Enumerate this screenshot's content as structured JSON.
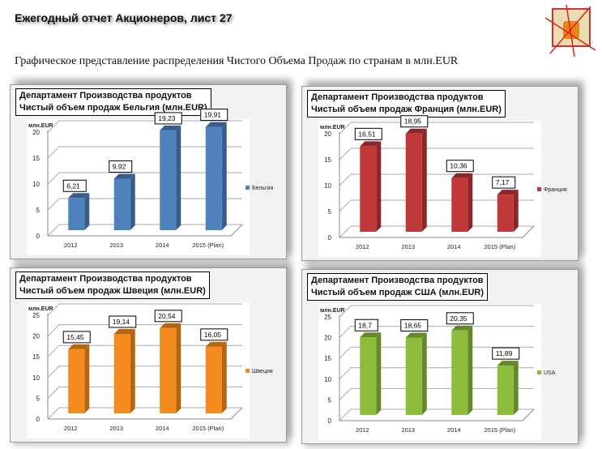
{
  "header": {
    "title": "Ежегодный отчет Акционеров, лист 27",
    "subtitle": "Графическое представление распределения Чистого Объема Продаж по странам в млн.EUR"
  },
  "chart_data": [
    {
      "type": "bar",
      "dept": "Департамент Производства продуктов",
      "title": "Чистый объем продаж Бельгия (млн.EUR)",
      "ylabel": "млн.EUR",
      "categories": [
        "2012",
        "2013",
        "2014",
        "2015 (Plan)"
      ],
      "series": [
        {
          "name": "Бельгия",
          "values": [
            6.21,
            9.92,
            19.23,
            19.91
          ],
          "labels": [
            "6,21",
            "9,92",
            "19,23",
            "19,91"
          ],
          "color": "#4f81bd",
          "side": "#385d8a"
        }
      ],
      "ylim": [
        0,
        20
      ],
      "yticks": [
        "0",
        "5",
        "10",
        "15",
        "20"
      ],
      "legend": "right",
      "grid": true
    },
    {
      "type": "bar",
      "dept": "Департамент Производства продуктов",
      "title": "Чистый объем продаж Франция (млн.EUR)",
      "ylabel": "млн.EUR",
      "categories": [
        "2012",
        "2013",
        "2014",
        "2015 (Plan)"
      ],
      "series": [
        {
          "name": "Франция",
          "values": [
            16.51,
            18.95,
            10.36,
            7.17
          ],
          "labels": [
            "16,51",
            "18,95",
            "10,36",
            "7,17"
          ],
          "color": "#c0383a",
          "side": "#8c2628"
        }
      ],
      "ylim": [
        0,
        20
      ],
      "yticks": [
        "0",
        "5",
        "10",
        "15",
        "20"
      ],
      "legend": "right",
      "grid": true
    },
    {
      "type": "bar",
      "dept": "Департамент Производства продуктов",
      "title": "Чистый объем продаж Швеция (млн.EUR)",
      "ylabel": "млн.EUR",
      "categories": [
        "2012",
        "2013",
        "2014",
        "2015 (Plan)"
      ],
      "series": [
        {
          "name": "Швеция",
          "values": [
            15.45,
            19.14,
            20.54,
            16.05
          ],
          "labels": [
            "15,45",
            "19,14",
            "20,54",
            "16,05"
          ],
          "color": "#f28a1e",
          "side": "#b8640f"
        }
      ],
      "ylim": [
        0,
        25
      ],
      "yticks": [
        "0",
        "5",
        "10",
        "15",
        "20",
        "25"
      ],
      "legend": "right",
      "grid": true
    },
    {
      "type": "bar",
      "dept": "Департамент Производства продуктов",
      "title": "Чистый объем продаж США (млн.EUR)",
      "ylabel": "млн.EUR",
      "categories": [
        "2012",
        "2013",
        "2014",
        "2015 (Plan)"
      ],
      "series": [
        {
          "name": "USA",
          "values": [
            18.7,
            18.65,
            20.35,
            11.89
          ],
          "labels": [
            "18,7",
            "18,65",
            "20,35",
            "11,89"
          ],
          "color": "#8dbb3c",
          "side": "#65892a"
        }
      ],
      "ylim": [
        0,
        25
      ],
      "yticks": [
        "0",
        "5",
        "10",
        "15",
        "20",
        "25"
      ],
      "legend": "right",
      "grid": true
    }
  ]
}
